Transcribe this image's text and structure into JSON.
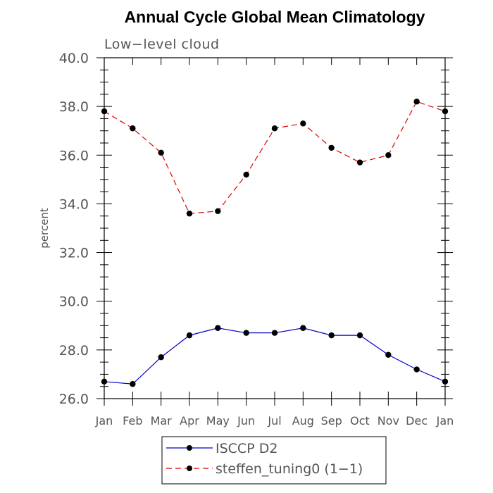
{
  "chart_data": {
    "type": "line",
    "title": "Annual Cycle Global Mean Climatology",
    "subtitle": "Low−level cloud",
    "xlabel": "",
    "ylabel": "percent",
    "categories": [
      "Jan",
      "Feb",
      "Mar",
      "Apr",
      "May",
      "Jun",
      "Jul",
      "Aug",
      "Sep",
      "Oct",
      "Nov",
      "Dec",
      "Jan"
    ],
    "ylim": [
      26.0,
      40.0
    ],
    "yticks": [
      "26.0",
      "28.0",
      "30.0",
      "32.0",
      "34.0",
      "36.0",
      "38.0",
      "40.0"
    ],
    "grid": false,
    "legend_position": "bottom-center",
    "series": [
      {
        "name": "ISCCP D2",
        "color": "#0000cc",
        "line_style": "solid",
        "marker": "filled-circle",
        "values": [
          26.7,
          26.6,
          27.7,
          28.6,
          28.9,
          28.7,
          28.7,
          28.9,
          28.6,
          28.6,
          27.8,
          27.2,
          26.7
        ]
      },
      {
        "name": "steffen_tuning0 (1−1)",
        "color": "#dd0000",
        "line_style": "dashed",
        "marker": "filled-circle",
        "values": [
          37.8,
          37.1,
          36.1,
          33.6,
          33.7,
          35.2,
          37.1,
          37.3,
          36.3,
          35.7,
          36.0,
          38.2,
          37.8
        ]
      }
    ]
  }
}
